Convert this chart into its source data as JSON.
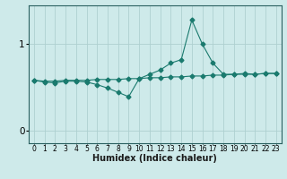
{
  "xlabel": "Humidex (Indice chaleur)",
  "ylabel": "",
  "background_color": "#ceeaea",
  "grid_color": "#aed0d0",
  "line_color": "#1a7a6e",
  "xlim": [
    -0.5,
    23.5
  ],
  "ylim": [
    -0.15,
    1.45
  ],
  "yticks": [
    0,
    1
  ],
  "xticks": [
    0,
    1,
    2,
    3,
    4,
    5,
    6,
    7,
    8,
    9,
    10,
    11,
    12,
    13,
    14,
    15,
    16,
    17,
    18,
    19,
    20,
    21,
    22,
    23
  ],
  "line1_x": [
    0,
    1,
    2,
    3,
    4,
    5,
    6,
    7,
    8,
    9,
    10,
    11,
    12,
    13,
    14,
    15,
    16,
    17,
    18,
    19,
    20,
    21,
    22,
    23
  ],
  "line1_y": [
    0.58,
    0.57,
    0.57,
    0.58,
    0.58,
    0.58,
    0.59,
    0.59,
    0.59,
    0.6,
    0.6,
    0.61,
    0.61,
    0.62,
    0.62,
    0.63,
    0.63,
    0.64,
    0.64,
    0.65,
    0.65,
    0.65,
    0.66,
    0.66
  ],
  "line2_x": [
    0,
    1,
    2,
    3,
    4,
    5,
    6,
    7,
    8,
    9,
    10,
    11,
    12,
    13,
    14,
    15,
    16,
    17,
    18,
    19,
    20,
    21,
    22,
    23
  ],
  "line2_y": [
    0.58,
    0.56,
    0.55,
    0.57,
    0.57,
    0.56,
    0.53,
    0.49,
    0.44,
    0.39,
    0.6,
    0.65,
    0.7,
    0.78,
    0.82,
    1.28,
    1.0,
    0.78,
    0.65,
    0.65,
    0.66,
    0.65,
    0.66,
    0.66
  ],
  "marker": "D",
  "markersize": 2.5,
  "linewidth": 0.8,
  "fontsize_label": 7,
  "fontsize_tick": 5.5
}
